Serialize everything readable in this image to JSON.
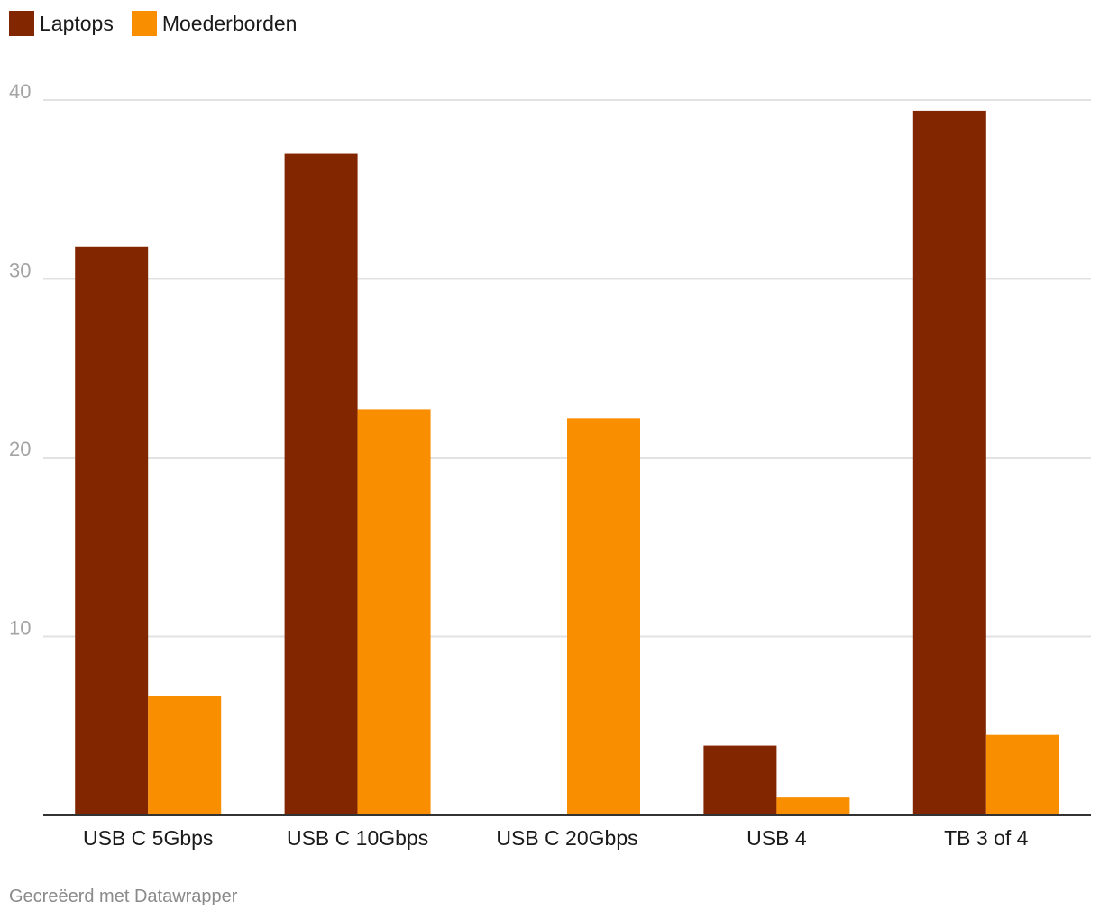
{
  "chart_data": {
    "type": "bar",
    "categories": [
      "USB C 5Gbps",
      "USB C 10Gbps",
      "USB C 20Gbps",
      "USB 4",
      "TB 3 of 4"
    ],
    "series": [
      {
        "name": "Laptops",
        "color": "#822600",
        "values": [
          31.8,
          37.0,
          0,
          3.9,
          39.4
        ]
      },
      {
        "name": "Moederborden",
        "color": "#f98e00",
        "values": [
          6.7,
          22.7,
          22.2,
          1.0,
          4.5
        ]
      }
    ],
    "ylim": [
      0,
      40
    ],
    "yticks": [
      10,
      20,
      30,
      40
    ],
    "grid": true,
    "legend_position": "top-left",
    "title": "",
    "xlabel": "",
    "ylabel": ""
  },
  "footer": {
    "credit": "Gecreëerd met Datawrapper"
  }
}
